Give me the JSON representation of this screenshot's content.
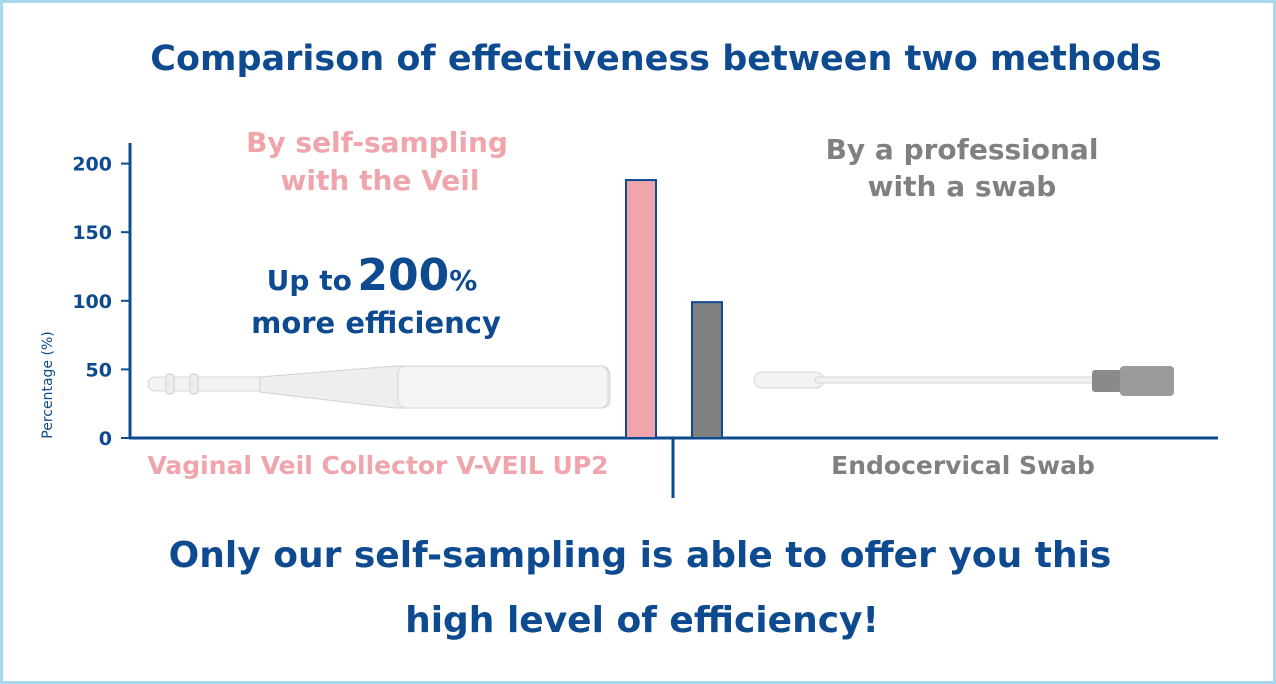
{
  "chart_data": {
    "type": "bar",
    "title": "Comparison of effectiveness between two methods",
    "y_label": "Percentage (%)",
    "categories": [
      "Vaginal Veil Collector V-VEIL UP2",
      "Endocervical Swab"
    ],
    "values": [
      188,
      99
    ],
    "colors": [
      "#f0a4ab",
      "#808080"
    ],
    "ylim": [
      0,
      215
    ],
    "yticks": [
      0,
      50,
      100,
      150,
      200
    ],
    "method_labels": [
      [
        "By self-sampling",
        "with the Veil"
      ],
      [
        "By a professional",
        "with a swab"
      ]
    ],
    "highlight": {
      "prefix": "Up to",
      "number": "200",
      "unit": "%",
      "suffix": "more efficiency"
    },
    "footer": [
      "Only our self-sampling is able to offer you this",
      "high level of efficiency!"
    ]
  }
}
